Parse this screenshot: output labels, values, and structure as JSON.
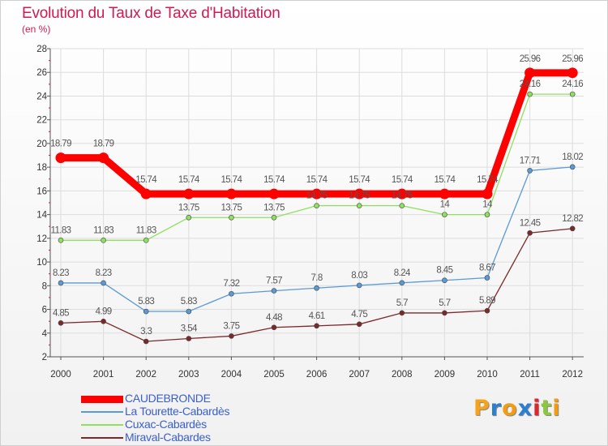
{
  "title": "Evolution du Taux de Taxe d'Habitation",
  "subtitle": "(en %)",
  "logo": {
    "text": "Proxiti",
    "colors": [
      "#f7a21b",
      "#2a7fd0",
      "#f39c12",
      "#2a7fd0",
      "#e0262c",
      "#8dc63f",
      "#f39c12"
    ]
  },
  "chart_data": {
    "type": "line",
    "x": [
      "2000",
      "2001",
      "2002",
      "2003",
      "2004",
      "2005",
      "2006",
      "2007",
      "2008",
      "2009",
      "2010",
      "2011",
      "2012"
    ],
    "yticks": [
      2,
      4,
      6,
      8,
      10,
      12,
      14,
      16,
      18,
      20,
      22,
      24,
      26,
      28
    ],
    "ylim": [
      2,
      28
    ],
    "grid": true,
    "legend_position": "bottom-left",
    "series": [
      {
        "name": "CAUDEBRONDE",
        "color": "#ff0000",
        "highlight": true,
        "values": [
          18.79,
          18.79,
          15.74,
          15.74,
          15.74,
          15.74,
          15.74,
          15.74,
          15.74,
          15.74,
          15.74,
          25.96,
          25.96
        ],
        "labels": [
          "18.79",
          "18.79",
          "15.74",
          "15.74",
          "15.74",
          "15.74",
          "15.74",
          "15.74",
          "15.74",
          "15.74",
          "15.74",
          "25.96",
          "25.96"
        ]
      },
      {
        "name": "La Tourette-Cabardès",
        "color": "#5a9ad6",
        "values": [
          8.23,
          8.23,
          5.83,
          5.83,
          7.32,
          7.57,
          7.8,
          8.03,
          8.24,
          8.45,
          8.67,
          17.71,
          18.02
        ],
        "labels": [
          "8.23",
          "8.23",
          "5.83",
          "5.83",
          "7.32",
          "7.57",
          "7.8",
          "8.03",
          "8.24",
          "8.45",
          "8.67",
          "17.71",
          "18.02"
        ]
      },
      {
        "name": "Cuxac-Cabardès",
        "color": "#90e060",
        "values": [
          11.83,
          11.83,
          11.83,
          13.75,
          13.75,
          13.75,
          14.75,
          14.75,
          14.75,
          14,
          14,
          24.16,
          24.16
        ],
        "labels": [
          "11.83",
          "11.83",
          "11.83",
          "13.75",
          "13.75",
          "13.75",
          "14.75",
          "14.75",
          "14.75",
          "14",
          "14",
          "24.16",
          "24.16"
        ]
      },
      {
        "name": "Miraval-Cabardes",
        "color": "#7a2a2a",
        "values": [
          4.85,
          4.99,
          3.3,
          3.54,
          3.75,
          4.48,
          4.61,
          4.75,
          5.7,
          5.7,
          5.89,
          12.45,
          12.82
        ],
        "labels": [
          "4.85",
          "4.99",
          "3.3",
          "3.54",
          "3.75",
          "4.48",
          "4.61",
          "4.75",
          "5.7",
          "5.7",
          "5.89",
          "12.45",
          "12.82"
        ]
      }
    ]
  }
}
